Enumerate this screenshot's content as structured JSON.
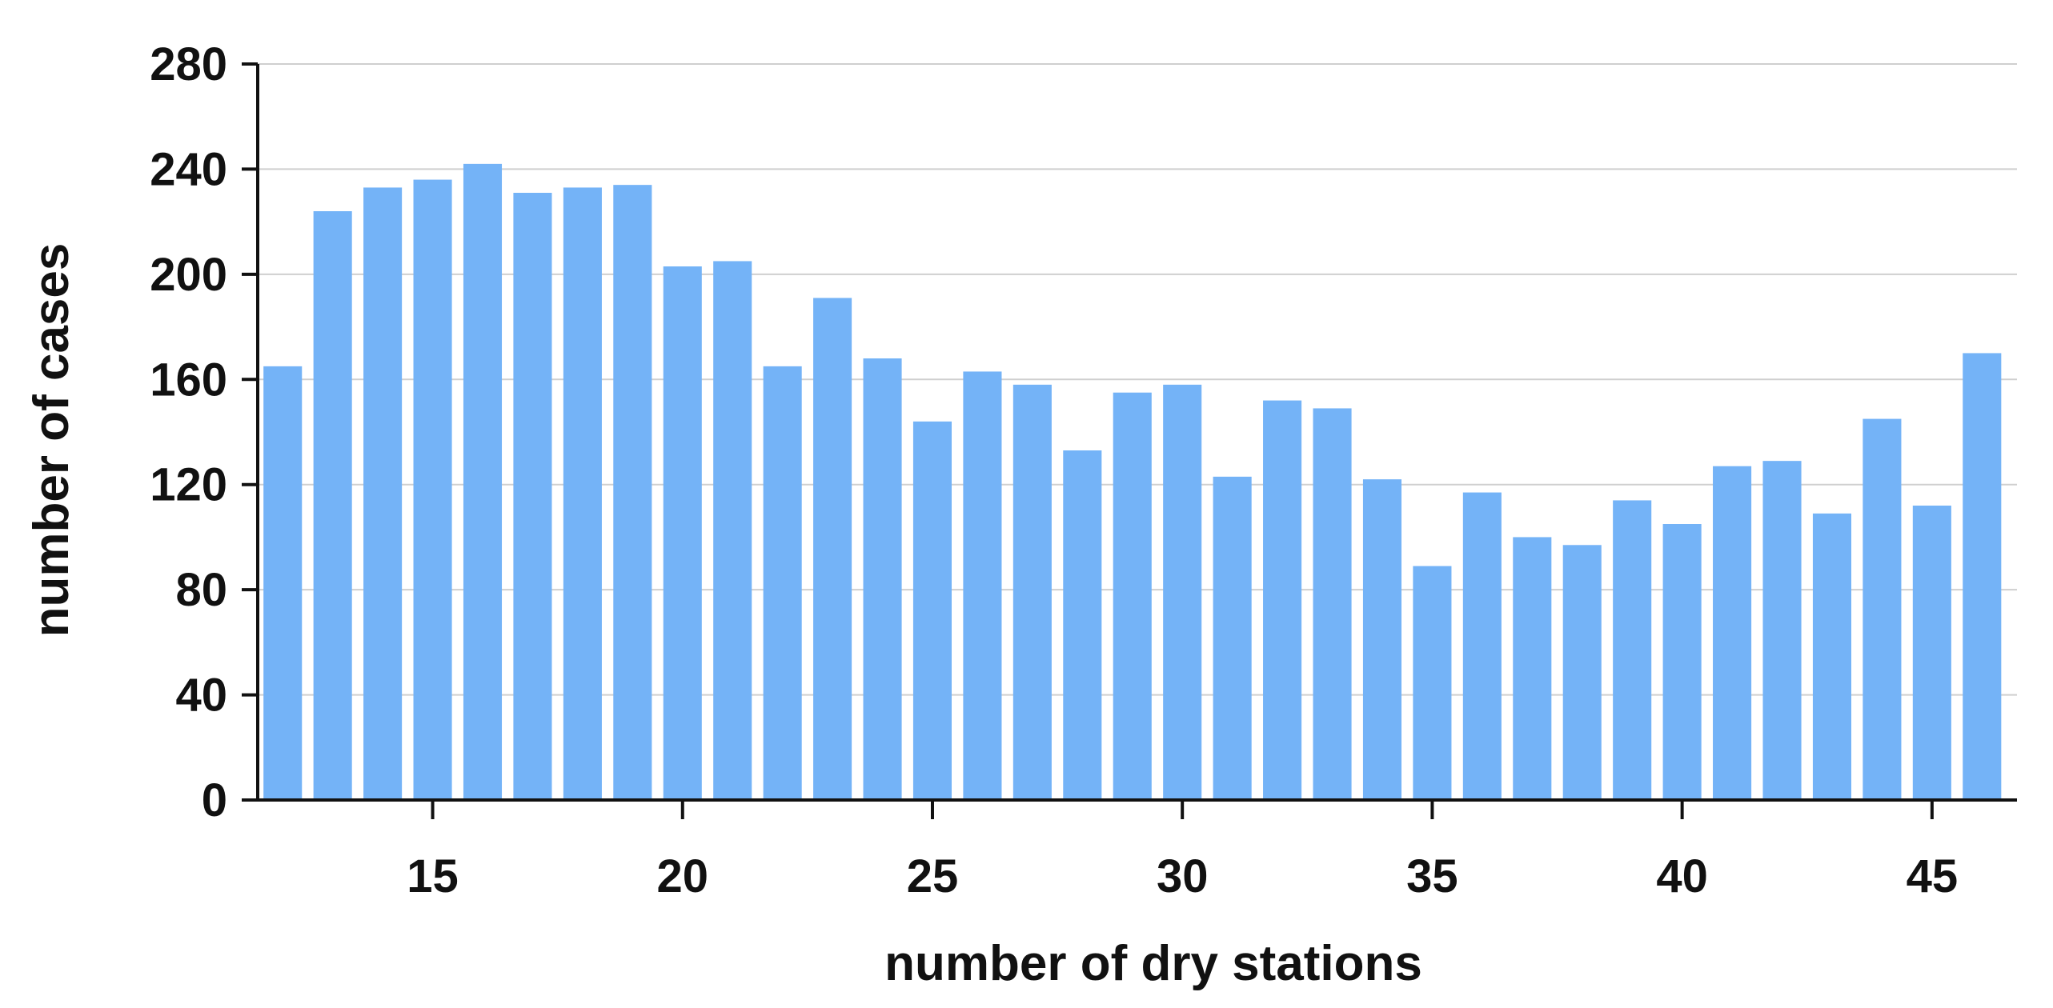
{
  "chart_data": {
    "type": "bar",
    "title": "",
    "xlabel": "number of dry stations",
    "ylabel": "number of cases",
    "x": [
      12,
      13,
      14,
      15,
      16,
      17,
      18,
      19,
      20,
      21,
      22,
      23,
      24,
      25,
      26,
      27,
      28,
      29,
      30,
      31,
      32,
      33,
      34,
      35,
      36,
      37,
      38,
      39,
      40,
      41,
      42,
      43,
      44,
      45,
      46
    ],
    "values": [
      165,
      224,
      233,
      236,
      242,
      231,
      233,
      234,
      203,
      205,
      165,
      191,
      168,
      144,
      163,
      158,
      133,
      155,
      158,
      123,
      152,
      149,
      122,
      89,
      117,
      100,
      97,
      114,
      105,
      127,
      129,
      109,
      145,
      112,
      170
    ],
    "xticks": [
      15,
      20,
      25,
      30,
      35,
      40,
      45
    ],
    "xlim": [
      11.5,
      46.7
    ],
    "ylim": [
      0,
      280
    ],
    "yticks": [
      0,
      40,
      80,
      120,
      160,
      200,
      240,
      280
    ],
    "grid": true,
    "bar_color": "#74b3f7",
    "grid_color": "#cfcfcf",
    "axis_color": "#111111"
  }
}
